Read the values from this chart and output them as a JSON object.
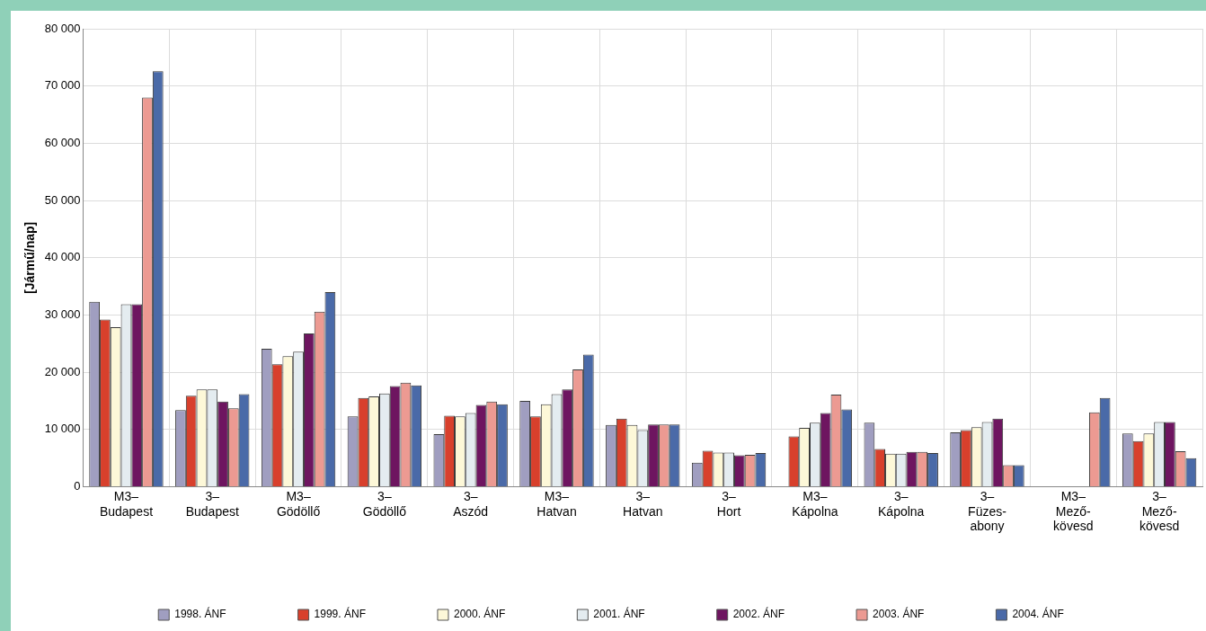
{
  "chart_data": {
    "type": "bar",
    "ylabel": "[Jármű/nap]",
    "categories": [
      "M3–\nBudapest",
      "3–\nBudapest",
      "M3–\nGödöllő",
      "3–\nGödöllő",
      "3–\nAszód",
      "M3–\nHatvan",
      "3–\nHatvan",
      "3–\nHort",
      "M3–\nKápolna",
      "3–\nKápolna",
      "3–\nFüzes-\nabony",
      "M3–\nMező-\nkövesd",
      "3–\nMező-\nkövesd"
    ],
    "series": [
      {
        "name": "1998. ÁNF",
        "color": "#a09ec0",
        "values": [
          32300,
          13400,
          24100,
          12300,
          9200,
          15000,
          10800,
          4200,
          null,
          11200,
          9500,
          null,
          9300
        ]
      },
      {
        "name": "1999. ÁNF",
        "color": "#d8402c",
        "values": [
          29200,
          15900,
          21400,
          15500,
          12400,
          12300,
          11900,
          6300,
          8800,
          6600,
          9900,
          null,
          8000
        ]
      },
      {
        "name": "2000. ÁNF",
        "color": "#fdf8d8",
        "values": [
          27900,
          17000,
          22800,
          15800,
          12300,
          14400,
          10800,
          6000,
          10300,
          5800,
          10400,
          null,
          9300
        ]
      },
      {
        "name": "2001. ÁNF",
        "color": "#e4ecf0",
        "values": [
          31900,
          17000,
          23600,
          16300,
          12900,
          16200,
          9900,
          6000,
          11200,
          5800,
          11300,
          null,
          11300
        ]
      },
      {
        "name": "2002. ÁNF",
        "color": "#6e1560",
        "values": [
          31900,
          14900,
          26800,
          17600,
          14300,
          17000,
          10900,
          5500,
          12900,
          6100,
          11900,
          null,
          11300
        ]
      },
      {
        "name": "2003. ÁNF",
        "color": "#ec9a92",
        "values": [
          68000,
          13700,
          30600,
          18200,
          14900,
          20500,
          10900,
          5600,
          16100,
          6100,
          3800,
          13000,
          6200
        ]
      },
      {
        "name": "2004. ÁNF",
        "color": "#4a6aa8",
        "values": [
          72600,
          16200,
          34000,
          17700,
          14400,
          23100,
          10900,
          5900,
          13500,
          5900,
          3800,
          15500,
          5000
        ]
      }
    ],
    "ylim": [
      0,
      80000
    ],
    "yticks": [
      0,
      {
        "value": 10000,
        "label": "10 000"
      },
      {
        "value": 20000,
        "label": "20 000"
      },
      {
        "value": 30000,
        "label": "30 000"
      },
      {
        "value": 40000,
        "label": "40 000"
      },
      {
        "value": 50000,
        "label": "50 000"
      },
      {
        "value": 60000,
        "label": "60 000"
      },
      {
        "value": 70000,
        "label": "70 000"
      },
      {
        "value": 80000,
        "label": "80 000"
      }
    ],
    "grid": true,
    "legend": "bottom"
  }
}
